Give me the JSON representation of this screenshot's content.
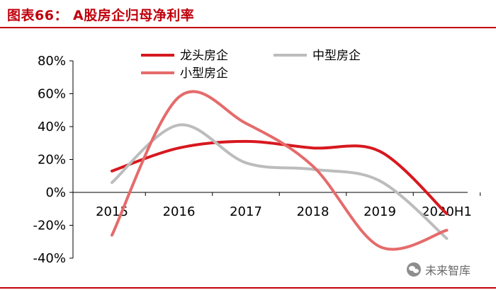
{
  "header": {
    "title": "图表66：  A股房企归母净利率"
  },
  "watermark": {
    "text": "未来智库"
  },
  "colors": {
    "accent": "#c0000c",
    "series": [
      "#d7181f",
      "#bcbcbc",
      "#e56b6b"
    ]
  },
  "chart_data": {
    "type": "line",
    "title": "",
    "xlabel": "",
    "ylabel": "",
    "categories": [
      "2015",
      "2016",
      "2017",
      "2018",
      "2019",
      "2020H1"
    ],
    "ylim": [
      -40,
      80
    ],
    "y_ticks": [
      "80%",
      "60%",
      "40%",
      "20%",
      "0%",
      "-20%",
      "-40%"
    ],
    "y_tick_values": [
      80,
      60,
      40,
      20,
      0,
      -20,
      -40
    ],
    "grid": false,
    "smooth": true,
    "legend_position": "top",
    "series": [
      {
        "name": "龙头房企",
        "values": [
          13,
          27,
          31,
          27,
          25,
          -13
        ]
      },
      {
        "name": "中型房企",
        "values": [
          6,
          41,
          18,
          14,
          7,
          -28
        ]
      },
      {
        "name": "小型房企",
        "values": [
          -26,
          58,
          42,
          16,
          -33,
          -23
        ]
      }
    ]
  }
}
